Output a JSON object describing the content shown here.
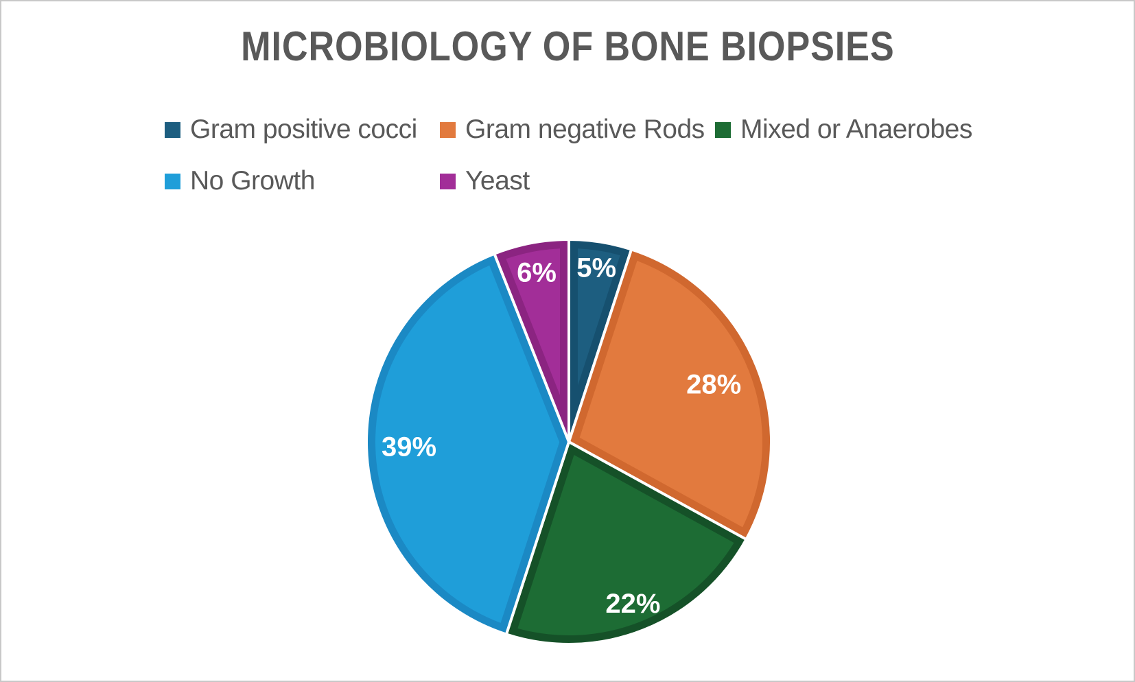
{
  "title": "MICROBIOLOGY OF BONE BIOPSIES",
  "styles": {
    "title_color": "#595959",
    "legend_text_color": "#595959",
    "slice_label_color": "#ffffff",
    "background": "#ffffff",
    "page_border_color": "#c8c8c8",
    "slice_separator_color": "#ffffff"
  },
  "chart_data": {
    "type": "pie",
    "title": "MICROBIOLOGY OF BONE BIOPSIES",
    "legend_position": "top",
    "start_angle_deg": 0,
    "direction": "clockwise",
    "slices": [
      {
        "label": "Gram positive cocci",
        "value": 5,
        "display": "5%",
        "color": "#1d5e80",
        "dark": "#16506f",
        "label_r": 0.87
      },
      {
        "label": "Gram negative Rods",
        "value": 28,
        "display": "28%",
        "color": "#e27a3e",
        "dark": "#d0682f",
        "label_r": 0.77
      },
      {
        "label": "Mixed or Anaerobes",
        "value": 22,
        "display": "22%",
        "color": "#1d6c34",
        "dark": "#155128",
        "label_r": 0.86
      },
      {
        "label": "No Growth",
        "value": 39,
        "display": "39%",
        "color": "#1f9ed9",
        "dark": "#1b89c4",
        "label_r": 0.79
      },
      {
        "label": "Yeast",
        "value": 6,
        "display": "6%",
        "color": "#a22e98",
        "dark": "#8b2481",
        "label_r": 0.85
      }
    ]
  }
}
